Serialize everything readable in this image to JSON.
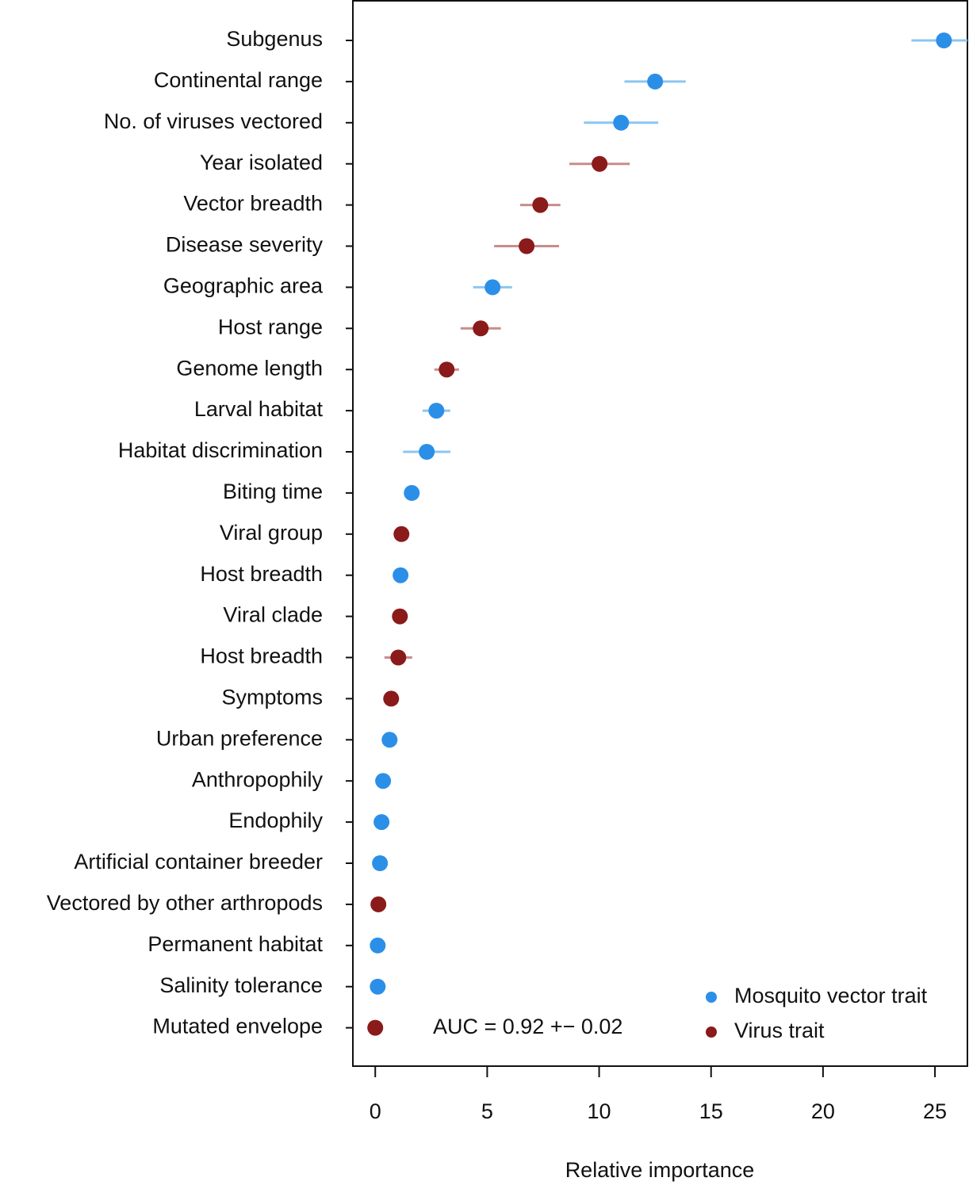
{
  "chart_data": {
    "type": "dot",
    "x_label": "Relative importance",
    "annotation": "AUC =  0.92  +−  0.02",
    "categories": [
      "Subgenus",
      "Continental range",
      "No. of viruses vectored",
      "Year isolated",
      "Vector breadth",
      "Disease severity",
      "Geographic area",
      "Host range",
      "Genome length",
      "Larval habitat",
      "Habitat discrimination",
      "Biting time",
      "Viral group",
      "Host breadth",
      "Viral clade",
      "Host breadth",
      "Symptoms",
      "Urban preference",
      "Anthropophily",
      "Endophily",
      "Artificial container breeder",
      "Vectored by other arthropods",
      "Permanent habitat",
      "Salinity tolerance",
      "Mutated envelope"
    ],
    "series": [
      {
        "name": "Mosquito vector trait",
        "color": "#2b8fe8",
        "error_color": "#8cc6f2",
        "values": [
          25.4,
          12.5,
          10.98,
          null,
          null,
          null,
          5.24,
          null,
          null,
          2.73,
          2.3,
          1.63,
          null,
          1.13,
          null,
          null,
          null,
          0.64,
          0.35,
          0.28,
          0.21,
          null,
          0.11,
          0.11,
          null
        ],
        "errors": [
          1.45,
          1.37,
          1.66,
          null,
          null,
          null,
          0.87,
          null,
          null,
          0.62,
          1.06,
          0,
          null,
          0,
          null,
          null,
          null,
          0,
          0,
          0,
          0,
          null,
          0,
          0,
          null
        ]
      },
      {
        "name": "Virus trait",
        "color": "#8b1a1a",
        "error_color": "#c98c8c",
        "values": [
          null,
          null,
          null,
          10.02,
          7.37,
          6.76,
          null,
          4.71,
          3.19,
          null,
          null,
          null,
          1.17,
          null,
          1.1,
          1.03,
          0.71,
          null,
          null,
          null,
          null,
          0.14,
          null,
          null,
          0
        ],
        "errors": [
          null,
          null,
          null,
          1.35,
          0.9,
          1.45,
          null,
          0.9,
          0.55,
          null,
          null,
          null,
          0,
          null,
          0,
          0.62,
          0,
          null,
          null,
          null,
          null,
          0,
          null,
          null,
          0
        ]
      }
    ],
    "xlim": [
      -1,
      26.45
    ],
    "xticks": [
      0,
      5,
      10,
      15,
      20,
      25
    ],
    "legend": "bottom-right"
  }
}
